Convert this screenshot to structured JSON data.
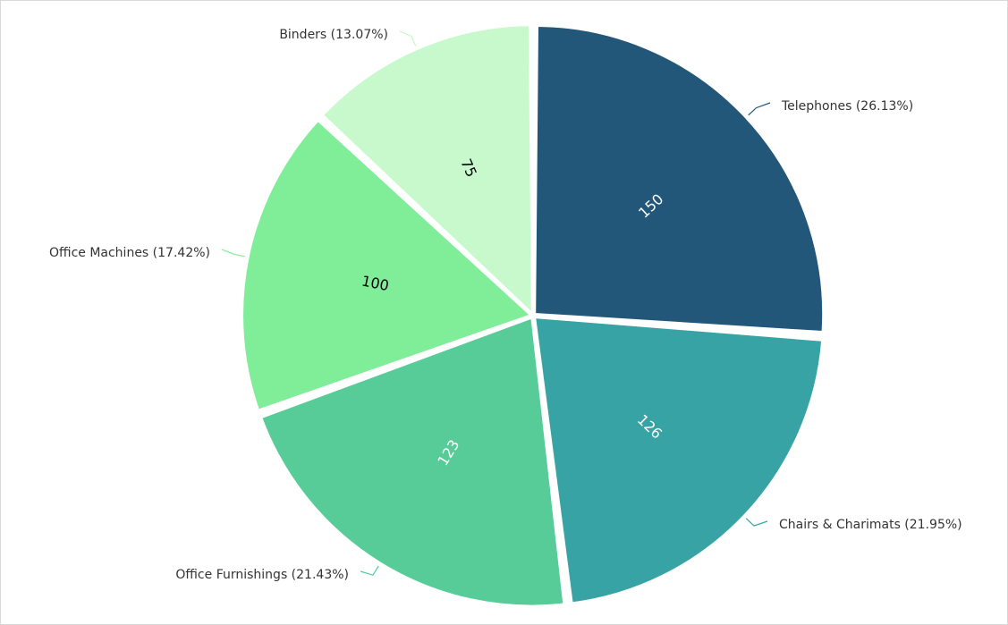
{
  "chart_data": {
    "type": "pie",
    "title": "",
    "series": [
      {
        "name": "Telephones",
        "value": 150,
        "percent_label": "26.13%",
        "color": "#22577a",
        "text_color": "#ffffff",
        "label": "Telephones (26.13%)",
        "value_label": "150"
      },
      {
        "name": "Chairs & Charimats",
        "value": 126,
        "percent_label": "21.95%",
        "color": "#38a3a5",
        "text_color": "#ffffff",
        "label": "Chairs & Charimats (21.95%)",
        "value_label": "126"
      },
      {
        "name": "Office Furnishings",
        "value": 123,
        "percent_label": "21.43%",
        "color": "#57cc99",
        "text_color": "#ffffff",
        "label": "Office Furnishings (21.43%)",
        "value_label": "123"
      },
      {
        "name": "Office Machines",
        "value": 100,
        "percent_label": "17.42%",
        "color": "#80ed99",
        "text_color": "#000000",
        "label": "Office Machines (17.42%)",
        "value_label": "100"
      },
      {
        "name": "Binders",
        "value": 75,
        "percent_label": "13.07%",
        "color": "#c7f9cc",
        "text_color": "#000000",
        "label": "Binders (13.07%)",
        "value_label": "75"
      }
    ]
  }
}
